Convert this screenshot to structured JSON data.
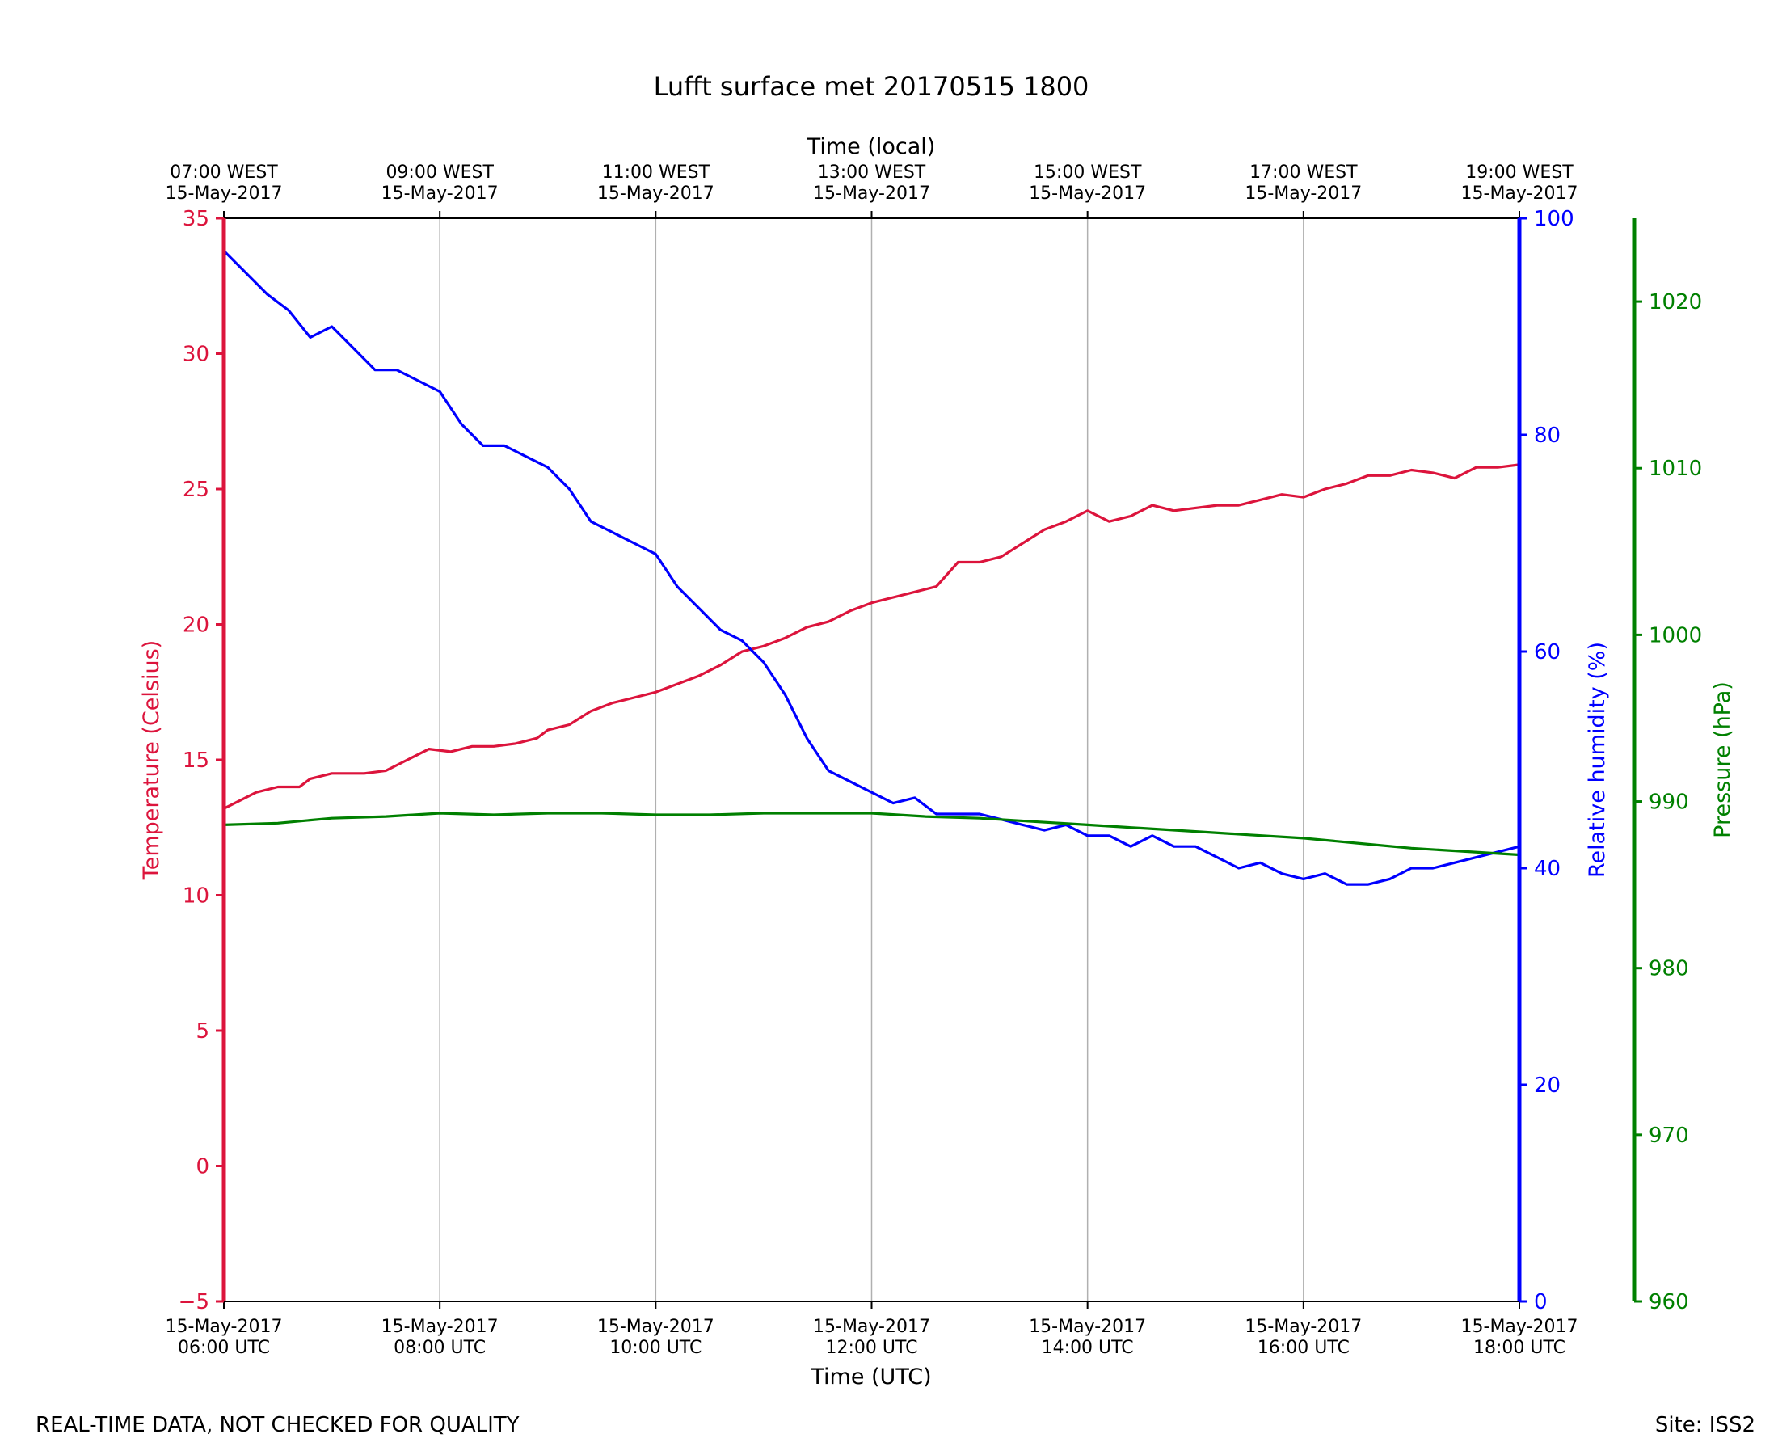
{
  "chart_data": {
    "type": "line",
    "title": "Lufft surface met 20170515 1800",
    "xlabel": "Time (UTC)",
    "x2label": "Time (local)",
    "xlim_hours": [
      6,
      18
    ],
    "x_ticks": [
      {
        "hour": 6,
        "utc": [
          "15-May-2017",
          "06:00 UTC"
        ],
        "local": [
          "07:00 WEST",
          "15-May-2017"
        ]
      },
      {
        "hour": 8,
        "utc": [
          "15-May-2017",
          "08:00 UTC"
        ],
        "local": [
          "09:00 WEST",
          "15-May-2017"
        ]
      },
      {
        "hour": 10,
        "utc": [
          "15-May-2017",
          "10:00 UTC"
        ],
        "local": [
          "11:00 WEST",
          "15-May-2017"
        ]
      },
      {
        "hour": 12,
        "utc": [
          "15-May-2017",
          "12:00 UTC"
        ],
        "local": [
          "13:00 WEST",
          "15-May-2017"
        ]
      },
      {
        "hour": 14,
        "utc": [
          "15-May-2017",
          "14:00 UTC"
        ],
        "local": [
          "15:00 WEST",
          "15-May-2017"
        ]
      },
      {
        "hour": 16,
        "utc": [
          "15-May-2017",
          "16:00 UTC"
        ],
        "local": [
          "17:00 WEST",
          "15-May-2017"
        ]
      },
      {
        "hour": 18,
        "utc": [
          "15-May-2017",
          "18:00 UTC"
        ],
        "local": [
          "19:00 WEST",
          "15-May-2017"
        ]
      }
    ],
    "grid": "vertical",
    "axes": {
      "temperature": {
        "label": "Temperature (Celsius)",
        "ylim": [
          -5,
          35
        ],
        "ticks": [
          -5,
          0,
          5,
          10,
          15,
          20,
          25,
          30,
          35
        ],
        "color": "#dc143c",
        "side": "left"
      },
      "humidity": {
        "label": "Relative humidity (%)",
        "ylim": [
          0,
          100
        ],
        "ticks": [
          0,
          20,
          40,
          60,
          80,
          100
        ],
        "color": "#0000ff",
        "side": "right"
      },
      "pressure": {
        "label": "Pressure (hPa)",
        "ylim": [
          960,
          1025
        ],
        "ticks": [
          960,
          970,
          980,
          990,
          1000,
          1010,
          1020
        ],
        "color": "#008000",
        "side": "far-right"
      }
    },
    "series": [
      {
        "name": "Temperature",
        "axis": "temperature",
        "color": "#dc143c",
        "points": [
          [
            6.0,
            13.2
          ],
          [
            6.3,
            13.8
          ],
          [
            6.5,
            14.0
          ],
          [
            6.7,
            14.0
          ],
          [
            6.8,
            14.3
          ],
          [
            7.0,
            14.5
          ],
          [
            7.3,
            14.5
          ],
          [
            7.5,
            14.6
          ],
          [
            7.7,
            15.0
          ],
          [
            7.9,
            15.4
          ],
          [
            8.1,
            15.3
          ],
          [
            8.3,
            15.5
          ],
          [
            8.5,
            15.5
          ],
          [
            8.7,
            15.6
          ],
          [
            8.9,
            15.8
          ],
          [
            9.0,
            16.1
          ],
          [
            9.2,
            16.3
          ],
          [
            9.4,
            16.8
          ],
          [
            9.6,
            17.1
          ],
          [
            9.8,
            17.3
          ],
          [
            10.0,
            17.5
          ],
          [
            10.2,
            17.8
          ],
          [
            10.4,
            18.1
          ],
          [
            10.6,
            18.5
          ],
          [
            10.8,
            19.0
          ],
          [
            11.0,
            19.2
          ],
          [
            11.2,
            19.5
          ],
          [
            11.4,
            19.9
          ],
          [
            11.6,
            20.1
          ],
          [
            11.8,
            20.5
          ],
          [
            12.0,
            20.8
          ],
          [
            12.2,
            21.0
          ],
          [
            12.4,
            21.2
          ],
          [
            12.6,
            21.4
          ],
          [
            12.8,
            22.3
          ],
          [
            13.0,
            22.3
          ],
          [
            13.2,
            22.5
          ],
          [
            13.4,
            23.0
          ],
          [
            13.6,
            23.5
          ],
          [
            13.8,
            23.8
          ],
          [
            14.0,
            24.2
          ],
          [
            14.2,
            23.8
          ],
          [
            14.4,
            24.0
          ],
          [
            14.6,
            24.4
          ],
          [
            14.8,
            24.2
          ],
          [
            15.0,
            24.3
          ],
          [
            15.2,
            24.4
          ],
          [
            15.4,
            24.4
          ],
          [
            15.6,
            24.6
          ],
          [
            15.8,
            24.8
          ],
          [
            16.0,
            24.7
          ],
          [
            16.2,
            25.0
          ],
          [
            16.4,
            25.2
          ],
          [
            16.6,
            25.5
          ],
          [
            16.8,
            25.5
          ],
          [
            17.0,
            25.7
          ],
          [
            17.2,
            25.6
          ],
          [
            17.4,
            25.4
          ],
          [
            17.6,
            25.8
          ],
          [
            17.8,
            25.8
          ],
          [
            18.0,
            25.9
          ]
        ]
      },
      {
        "name": "Relative humidity",
        "axis": "humidity",
        "color": "#0000ff",
        "points": [
          [
            6.0,
            97
          ],
          [
            6.2,
            95
          ],
          [
            6.4,
            93
          ],
          [
            6.6,
            91.5
          ],
          [
            6.8,
            89
          ],
          [
            7.0,
            90
          ],
          [
            7.2,
            88
          ],
          [
            7.4,
            86
          ],
          [
            7.6,
            86
          ],
          [
            7.8,
            85
          ],
          [
            8.0,
            84
          ],
          [
            8.2,
            81
          ],
          [
            8.4,
            79
          ],
          [
            8.6,
            79
          ],
          [
            8.8,
            78
          ],
          [
            9.0,
            77
          ],
          [
            9.2,
            75
          ],
          [
            9.4,
            72
          ],
          [
            9.6,
            71
          ],
          [
            9.8,
            70
          ],
          [
            10.0,
            69
          ],
          [
            10.2,
            66
          ],
          [
            10.4,
            64
          ],
          [
            10.6,
            62
          ],
          [
            10.8,
            61
          ],
          [
            11.0,
            59
          ],
          [
            11.2,
            56
          ],
          [
            11.4,
            52
          ],
          [
            11.6,
            49
          ],
          [
            11.8,
            48
          ],
          [
            12.0,
            47
          ],
          [
            12.2,
            46
          ],
          [
            12.4,
            46.5
          ],
          [
            12.6,
            45
          ],
          [
            12.8,
            45
          ],
          [
            13.0,
            45
          ],
          [
            13.2,
            44.5
          ],
          [
            13.4,
            44
          ],
          [
            13.6,
            43.5
          ],
          [
            13.8,
            44
          ],
          [
            14.0,
            43
          ],
          [
            14.2,
            43
          ],
          [
            14.4,
            42
          ],
          [
            14.6,
            43
          ],
          [
            14.8,
            42
          ],
          [
            15.0,
            42
          ],
          [
            15.2,
            41
          ],
          [
            15.4,
            40
          ],
          [
            15.6,
            40.5
          ],
          [
            15.8,
            39.5
          ],
          [
            16.0,
            39
          ],
          [
            16.2,
            39.5
          ],
          [
            16.4,
            38.5
          ],
          [
            16.6,
            38.5
          ],
          [
            16.8,
            39
          ],
          [
            17.0,
            40
          ],
          [
            17.2,
            40
          ],
          [
            17.4,
            40.5
          ],
          [
            17.6,
            41
          ],
          [
            17.8,
            41.5
          ],
          [
            18.0,
            42
          ]
        ]
      },
      {
        "name": "Pressure",
        "axis": "pressure",
        "color": "#008000",
        "points": [
          [
            6.0,
            988.6
          ],
          [
            6.5,
            988.7
          ],
          [
            7.0,
            989.0
          ],
          [
            7.5,
            989.1
          ],
          [
            8.0,
            989.3
          ],
          [
            8.5,
            989.2
          ],
          [
            9.0,
            989.3
          ],
          [
            9.5,
            989.3
          ],
          [
            10.0,
            989.2
          ],
          [
            10.5,
            989.2
          ],
          [
            11.0,
            989.3
          ],
          [
            11.5,
            989.3
          ],
          [
            12.0,
            989.3
          ],
          [
            12.5,
            989.1
          ],
          [
            13.0,
            989.0
          ],
          [
            13.5,
            988.8
          ],
          [
            14.0,
            988.6
          ],
          [
            14.5,
            988.4
          ],
          [
            15.0,
            988.2
          ],
          [
            15.5,
            988.0
          ],
          [
            16.0,
            987.8
          ],
          [
            16.5,
            987.5
          ],
          [
            17.0,
            987.2
          ],
          [
            17.5,
            987.0
          ],
          [
            18.0,
            986.8
          ]
        ]
      }
    ]
  },
  "footer": {
    "disclaimer": "REAL-TIME DATA, NOT CHECKED FOR QUALITY",
    "site": "Site: ISS2"
  }
}
